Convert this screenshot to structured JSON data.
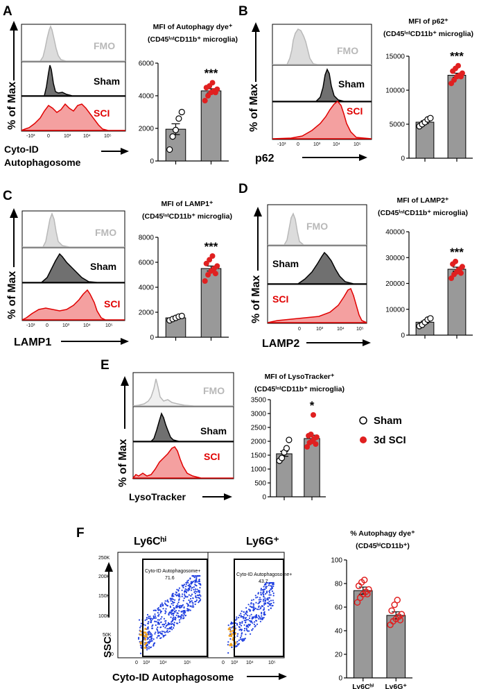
{
  "panels": {
    "A": {
      "letter": "A",
      "title_line1": "MFI of Autophagy dye⁺",
      "title_line2": "(CD45ⁱⁿᵗCD11b⁺ microglia)",
      "xlabel_line1": "Cyto-ID",
      "xlabel_line2": "Autophagosome",
      "ylabel": "% of Max",
      "hist_labels": [
        "FMO",
        "Sham",
        "SCI"
      ],
      "x_ticks": [
        "-10³",
        "0",
        "10³",
        "10⁴",
        "10⁵"
      ],
      "significance": "***"
    },
    "B": {
      "letter": "B",
      "title_line1": "MFI of p62⁺",
      "title_line2": "(CD45ⁱⁿᵗCD11b⁺ microglia)",
      "xlabel": "p62",
      "ylabel": "% of Max",
      "hist_labels": [
        "FMO",
        "Sham",
        "SCI"
      ],
      "x_ticks": [
        "-10³",
        "0",
        "10³",
        "10⁴",
        "10⁵"
      ],
      "significance": "***"
    },
    "C": {
      "letter": "C",
      "title_line1": "MFI of LAMP1⁺",
      "title_line2": "(CD45ⁱⁿᵗCD11b⁺ microglia)",
      "xlabel": "LAMP1",
      "ylabel": "% of Max",
      "hist_labels": [
        "FMO",
        "Sham",
        "SCI"
      ],
      "x_ticks": [
        "-10³",
        "0",
        "10³",
        "10⁴",
        "10⁵"
      ],
      "significance": "***"
    },
    "D": {
      "letter": "D",
      "title_line1": "MFI of LAMP2⁺",
      "title_line2": "(CD45ⁱⁿᵗCD11b⁺ microglia)",
      "xlabel": "LAMP2",
      "ylabel": "% of Max",
      "hist_labels": [
        "FMO",
        "Sham",
        "SCI"
      ],
      "x_ticks": [
        "0",
        "10³",
        "10⁴",
        "10⁵"
      ],
      "significance": "***"
    },
    "E": {
      "letter": "E",
      "title_line1": "MFI of LysoTracker⁺",
      "title_line2": "(CD45ⁱⁿᵗCD11b⁺ microglia)",
      "xlabel": "LysoTracker",
      "ylabel": "% of Max",
      "hist_labels": [
        "FMO",
        "Sham",
        "SCI"
      ],
      "significance": "*"
    },
    "F": {
      "letter": "F",
      "col1": "Ly6Cʰⁱ",
      "col2": "Ly6G⁺",
      "gate_label": "Cyto-ID Autophagosome+",
      "gate1_pct": "71.6",
      "gate2_pct": "43.7",
      "ylabel": "SSC",
      "xlabel": "Cyto-ID Autophagosome",
      "y_ticks": [
        "250K",
        "200K",
        "150K",
        "100K",
        "50K",
        "0"
      ],
      "x_ticks": [
        "0",
        "10³",
        "10⁴",
        "10⁵"
      ],
      "title_line1": "% Autophagy dye⁺",
      "title_line2": "(CD45ʰⁱCD11b⁺)",
      "bar_categories": [
        "Ly6Cʰⁱ",
        "Ly6G⁺"
      ]
    }
  },
  "legend": {
    "sham": "Sham",
    "sci": "3d SCI"
  },
  "colors": {
    "sham_fill": "#808080",
    "sci_fill": "#f08080",
    "sci_line": "#e00000",
    "fmo": "#b8b8b8",
    "bar": "#999999",
    "dot_red": "#e02020"
  },
  "chart_data": [
    {
      "panel": "A",
      "type": "bar",
      "categories": [
        "Sham",
        "SCI"
      ],
      "values": [
        1950,
        4300
      ],
      "errors": [
        330,
        130
      ],
      "ylim": [
        0,
        6000
      ],
      "yticks": [
        0,
        2000,
        4000,
        6000
      ],
      "points": [
        [
          700,
          1500,
          1900,
          2600,
          3000
        ],
        [
          3700,
          4000,
          4200,
          4300,
          4400,
          4500,
          4600,
          4800,
          4200
        ]
      ]
    },
    {
      "panel": "B",
      "type": "bar",
      "categories": [
        "Sham",
        "SCI"
      ],
      "values": [
        5300,
        12200
      ],
      "errors": [
        200,
        300
      ],
      "ylim": [
        0,
        15000
      ],
      "yticks": [
        0,
        5000,
        10000,
        15000
      ],
      "points": [
        [
          4700,
          5000,
          5300,
          5700,
          5900
        ],
        [
          11000,
          11500,
          12000,
          12200,
          12500,
          12800,
          13200,
          13600,
          12000
        ]
      ]
    },
    {
      "panel": "C",
      "type": "bar",
      "categories": [
        "Sham",
        "SCI"
      ],
      "values": [
        1550,
        5500
      ],
      "errors": [
        70,
        200
      ],
      "ylim": [
        0,
        8000
      ],
      "yticks": [
        0,
        2000,
        4000,
        6000,
        8000
      ],
      "points": [
        [
          1350,
          1450,
          1550,
          1650,
          1700
        ],
        [
          4500,
          5000,
          5300,
          5500,
          5700,
          5900,
          6200,
          6500,
          5100
        ]
      ]
    },
    {
      "panel": "D",
      "type": "bar",
      "categories": [
        "Sham",
        "SCI"
      ],
      "values": [
        5000,
        25500
      ],
      "errors": [
        400,
        800
      ],
      "ylim": [
        0,
        40000
      ],
      "yticks": [
        0,
        10000,
        20000,
        30000,
        40000
      ],
      "points": [
        [
          3500,
          4000,
          5000,
          6000,
          6500
        ],
        [
          22000,
          23500,
          24500,
          25500,
          26500,
          27500,
          28500,
          25000,
          24000
        ]
      ]
    },
    {
      "panel": "E",
      "type": "bar",
      "categories": [
        "Sham",
        "SCI"
      ],
      "values": [
        1550,
        2100
      ],
      "errors": [
        90,
        120
      ],
      "ylim": [
        0,
        3500
      ],
      "yticks": [
        0,
        500,
        1000,
        1500,
        2000,
        2500,
        3000,
        3500
      ],
      "points": [
        [
          1300,
          1400,
          1600,
          1750,
          2050
        ],
        [
          1800,
          1950,
          2000,
          2100,
          2150,
          2200,
          2250,
          2950,
          1900
        ]
      ]
    },
    {
      "panel": "F",
      "type": "bar",
      "categories": [
        "Ly6Cʰⁱ",
        "Ly6G⁺"
      ],
      "values": [
        74,
        53
      ],
      "errors": [
        3,
        3
      ],
      "ylim": [
        0,
        100
      ],
      "yticks": [
        0,
        20,
        40,
        60,
        80,
        100
      ],
      "points": [
        [
          64,
          68,
          71,
          73,
          75,
          78,
          81,
          83,
          71
        ],
        [
          45,
          48,
          50,
          52,
          54,
          57,
          62,
          66,
          49
        ]
      ]
    }
  ]
}
